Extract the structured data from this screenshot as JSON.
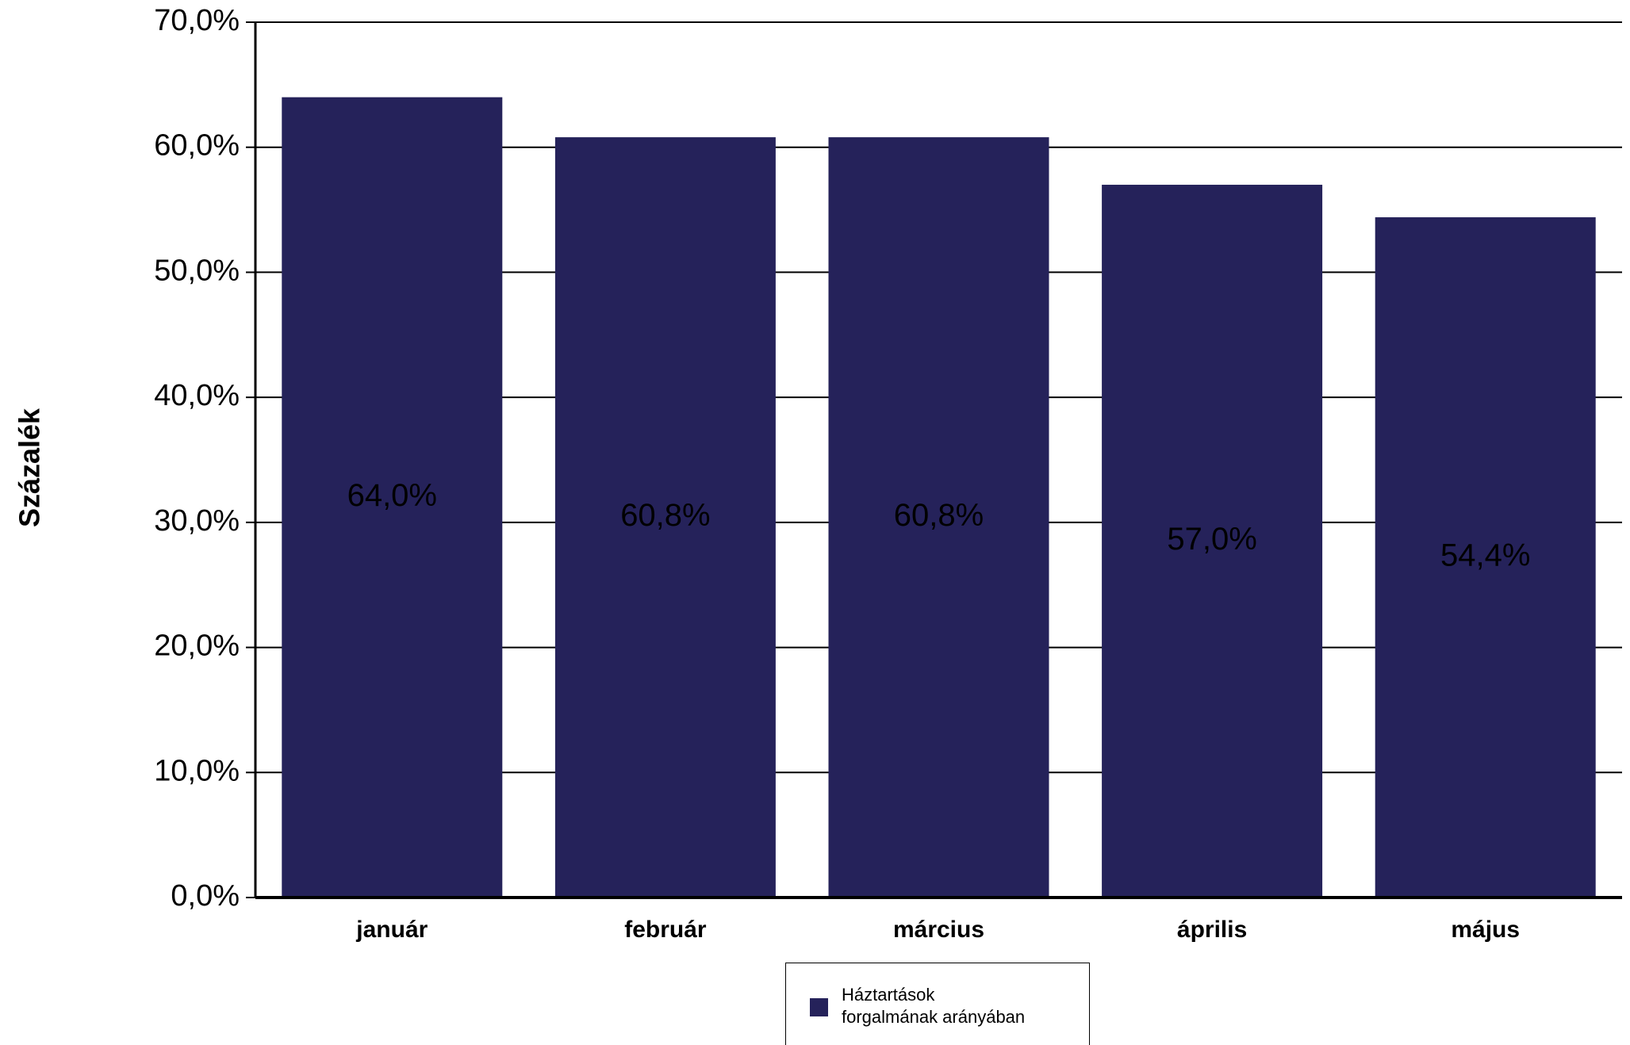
{
  "chart_data": {
    "type": "bar",
    "categories": [
      "január",
      "február",
      "március",
      "április",
      "május"
    ],
    "series": [
      {
        "name": "Háztartások\nforgalmának arányában",
        "values": [
          64.0,
          60.8,
          60.8,
          57.0,
          54.4
        ],
        "labels": [
          "64,0%",
          "60,8%",
          "60,8%",
          "57,0%",
          "54,4%"
        ]
      }
    ],
    "ylabel": "Százalék",
    "ylim": [
      0,
      70
    ],
    "yticks": [
      0,
      10,
      20,
      30,
      40,
      50,
      60,
      70
    ],
    "ytick_labels": [
      "0,0%",
      "10,0%",
      "20,0%",
      "30,0%",
      "40,0%",
      "50,0%",
      "60,0%",
      "70,0%"
    ],
    "grid": true,
    "legend_position": "bottom",
    "colors": {
      "bar": "#25225a",
      "grid": "#000000"
    }
  }
}
